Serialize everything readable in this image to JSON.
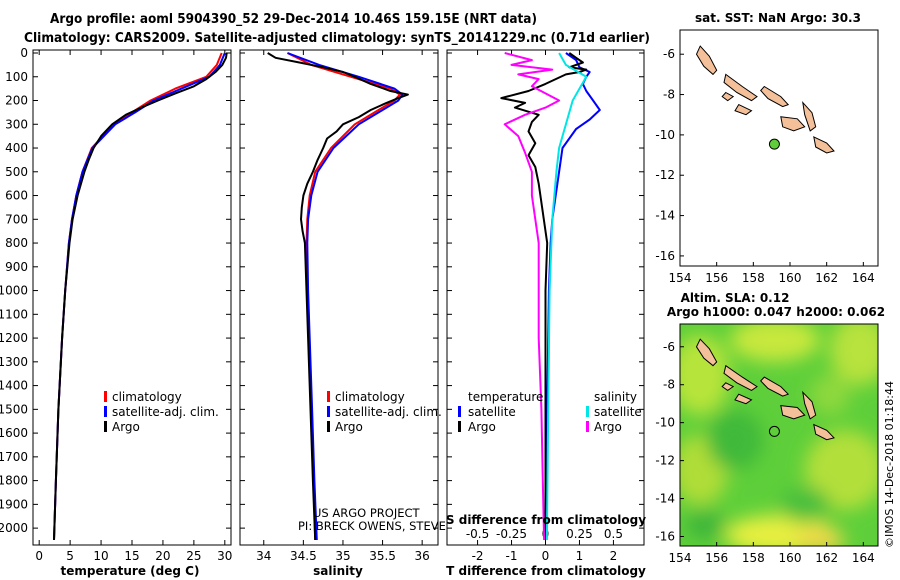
{
  "header": {
    "title_line1": "Argo profile: aoml 5904390_52 29-Dec-2014 10.46S 159.15E (NRT data)",
    "title_line2": "Climatology: CARS2009. Satellite-adjusted climatology: synTS_20141229.nc (0.71d earlier)"
  },
  "depth_ticks": [
    "0",
    "100",
    "200",
    "300",
    "400",
    "500",
    "600",
    "700",
    "800",
    "900",
    "1000",
    "1100",
    "1200",
    "1300",
    "1400",
    "1500",
    "1600",
    "1700",
    "1800",
    "1900",
    "2000"
  ],
  "colors": {
    "climatology": "#ff0000",
    "satellite": "#0000ff",
    "argo": "#000000",
    "salinity_sat": "#00e5e5",
    "salinity_argo": "#ff00ff",
    "land": "#f4c09a"
  },
  "chart_data": [
    {
      "type": "line",
      "title": "",
      "xlabel": "temperature (deg C)",
      "xlim": [
        -1,
        31
      ],
      "ylim": [
        2050,
        0
      ],
      "xticks": [
        "0",
        "5",
        "10",
        "15",
        "20",
        "25",
        "30"
      ],
      "legend": {
        "placement": "bottom-center",
        "entries": [
          "climatology",
          "satellite-adj. clim.",
          "Argo"
        ]
      },
      "series": [
        {
          "name": "climatology",
          "depth": [
            0,
            50,
            100,
            150,
            200,
            250,
            300,
            400,
            500,
            600,
            700,
            800,
            1000,
            1200,
            1500,
            1800,
            2050
          ],
          "values": [
            29.5,
            28.7,
            27,
            22,
            18,
            15,
            12,
            8.5,
            7,
            6,
            5.3,
            4.8,
            4.2,
            3.7,
            3.1,
            2.7,
            2.4
          ]
        },
        {
          "name": "satellite-adj. clim.",
          "depth": [
            0,
            50,
            100,
            150,
            200,
            250,
            300,
            400,
            500,
            600,
            700,
            800,
            1000,
            1200,
            1500,
            1800,
            2050
          ],
          "values": [
            30,
            29.2,
            27.5,
            23,
            18.5,
            15.5,
            12.3,
            8.6,
            7,
            6,
            5.3,
            4.8,
            4.2,
            3.7,
            3.1,
            2.7,
            2.4
          ]
        },
        {
          "name": "Argo",
          "depth": [
            0,
            20,
            50,
            80,
            110,
            140,
            170,
            200,
            230,
            260,
            300,
            350,
            400,
            450,
            500,
            600,
            700,
            800,
            1000,
            1200,
            1500,
            1800,
            2050
          ],
          "values": [
            30.3,
            30.2,
            29.6,
            28.5,
            27,
            25,
            22,
            19.2,
            16.5,
            14,
            11.8,
            10,
            8.8,
            8,
            7.3,
            6.2,
            5.4,
            4.9,
            4.2,
            3.7,
            3.1,
            2.7,
            2.4
          ]
        }
      ]
    },
    {
      "type": "line",
      "title": "",
      "xlabel": "salinity",
      "xlim": [
        33.7,
        36.2
      ],
      "ylim": [
        2050,
        0
      ],
      "xticks": [
        "34",
        "34.5",
        "35",
        "35.5",
        "36"
      ],
      "legend": {
        "placement": "bottom-center",
        "entries": [
          "climatology",
          "satellite-adj. clim.",
          "Argo"
        ]
      },
      "series": [
        {
          "name": "climatology",
          "depth": [
            0,
            50,
            100,
            150,
            175,
            200,
            250,
            300,
            400,
            500,
            600,
            700,
            800,
            1000,
            1200,
            1500,
            1800,
            2050
          ],
          "values": [
            34.3,
            34.6,
            35.1,
            35.6,
            35.72,
            35.65,
            35.4,
            35.15,
            34.85,
            34.65,
            34.58,
            34.55,
            34.54,
            34.55,
            34.57,
            34.6,
            34.63,
            34.65
          ]
        },
        {
          "name": "satellite-adj. clim.",
          "depth": [
            0,
            50,
            100,
            150,
            175,
            200,
            250,
            300,
            400,
            500,
            600,
            700,
            800,
            1000,
            1200,
            1500,
            1800,
            2050
          ],
          "values": [
            34.3,
            34.7,
            35.2,
            35.65,
            35.75,
            35.7,
            35.45,
            35.2,
            34.88,
            34.68,
            34.6,
            34.56,
            34.55,
            34.56,
            34.58,
            34.61,
            34.64,
            34.67
          ]
        },
        {
          "name": "Argo",
          "depth": [
            0,
            20,
            40,
            60,
            80,
            100,
            130,
            160,
            175,
            190,
            210,
            240,
            270,
            300,
            330,
            360,
            400,
            450,
            500,
            550,
            600,
            650,
            700,
            750,
            800,
            1000,
            1200,
            1500,
            1800,
            2050
          ],
          "values": [
            34.05,
            34.15,
            34.45,
            34.75,
            35.0,
            35.15,
            35.35,
            35.6,
            35.82,
            35.7,
            35.55,
            35.35,
            35.2,
            35.0,
            34.92,
            34.8,
            34.75,
            34.68,
            34.62,
            34.55,
            34.5,
            34.48,
            34.47,
            34.49,
            34.52,
            34.54,
            34.56,
            34.59,
            34.62,
            34.65
          ]
        }
      ]
    },
    {
      "type": "line",
      "title": "",
      "xlabel": "T difference from climatology",
      "xlabel2": "S difference from climatology",
      "xlim": [
        -2.9,
        2.9
      ],
      "ylim": [
        2050,
        0
      ],
      "xticks": [
        "-2",
        "-1",
        "0",
        "1",
        "2"
      ],
      "xticks2": [
        "-0.5",
        "-0.25",
        "0",
        "0.25",
        "0.5"
      ],
      "legend": {
        "placement": "bottom",
        "header_left": "temperature",
        "header_right": "salinity",
        "entries_left": [
          "satellite",
          "Argo"
        ],
        "entries_right": [
          "satellite",
          "Argo"
        ]
      },
      "series": [
        {
          "name": "temperature satellite",
          "depth": [
            0,
            30,
            60,
            80,
            100,
            130,
            160,
            200,
            240,
            280,
            320,
            400,
            500,
            600,
            700,
            800,
            1000,
            1500,
            2050
          ],
          "values": [
            0.6,
            0.9,
            1.0,
            1.3,
            1.2,
            1.1,
            1.2,
            1.4,
            1.6,
            1.3,
            0.9,
            0.5,
            0.4,
            0.3,
            0.2,
            0.15,
            0.1,
            0.05,
            0.0
          ]
        },
        {
          "name": "temperature Argo",
          "depth": [
            0,
            20,
            40,
            60,
            70,
            80,
            90,
            110,
            130,
            160,
            190,
            210,
            230,
            260,
            290,
            330,
            380,
            430,
            480,
            550,
            650,
            800,
            1000,
            1500,
            2050
          ],
          "values": [
            0.7,
            0.9,
            1.1,
            0.7,
            1.2,
            1.0,
            0.6,
            0.3,
            0.0,
            -0.5,
            -1.3,
            -0.6,
            -0.9,
            -0.2,
            -0.4,
            -0.5,
            -0.3,
            -0.5,
            -0.3,
            -0.2,
            -0.1,
            0.05,
            0.0,
            0.0,
            0.0
          ]
        },
        {
          "name": "salinity satellite",
          "depth": [
            0,
            50,
            100,
            150,
            200,
            300,
            400,
            500,
            700,
            1000,
            1500,
            2050
          ],
          "values": [
            0.1,
            0.15,
            0.3,
            0.25,
            0.2,
            0.15,
            0.1,
            0.08,
            0.05,
            0.03,
            0.02,
            0.01
          ]
        },
        {
          "name": "salinity Argo",
          "depth": [
            0,
            30,
            50,
            70,
            90,
            110,
            140,
            170,
            200,
            230,
            260,
            300,
            350,
            420,
            500,
            600,
            800,
            1000,
            1200,
            1500,
            1800,
            2050
          ],
          "values": [
            -0.3,
            -0.1,
            -0.25,
            0.05,
            -0.2,
            -0.05,
            -0.1,
            0.0,
            0.1,
            0.0,
            -0.15,
            -0.3,
            -0.2,
            -0.15,
            -0.1,
            -0.1,
            -0.05,
            -0.05,
            -0.05,
            -0.03,
            -0.02,
            -0.01
          ]
        }
      ]
    },
    {
      "type": "scatter",
      "title": "sat. SST: NaN Argo: 30.3",
      "xlim": [
        154,
        164.8
      ],
      "ylim": [
        -16.5,
        -4.8
      ],
      "xticks": [
        "154",
        "156",
        "158",
        "160",
        "162",
        "164"
      ],
      "yticks": [
        "-6",
        "-8",
        "-10",
        "-12",
        "-14",
        "-16"
      ],
      "points": [
        {
          "x": 159.15,
          "y": -10.46,
          "name": "Argo float"
        }
      ]
    },
    {
      "type": "heatmap",
      "title": "Altim. SLA: 0.12",
      "subtitle": "Argo h1000: 0.047 h2000: 0.062",
      "xlim": [
        154,
        164.8
      ],
      "ylim": [
        -16.5,
        -4.8
      ],
      "xticks": [
        "154",
        "156",
        "158",
        "160",
        "162",
        "164"
      ],
      "yticks": [
        "-6",
        "-8",
        "-10",
        "-12",
        "-14",
        "-16"
      ],
      "points": [
        {
          "x": 159.15,
          "y": -10.46,
          "name": "Argo float"
        }
      ]
    }
  ],
  "credits": {
    "line1": "US ARGO PROJECT",
    "line2": "PI: BRECK OWENS, STEVE JAYNE, P. ROBBINS"
  },
  "footer_stamp": "©IMOS 14-Dec-2018 01:18:44"
}
